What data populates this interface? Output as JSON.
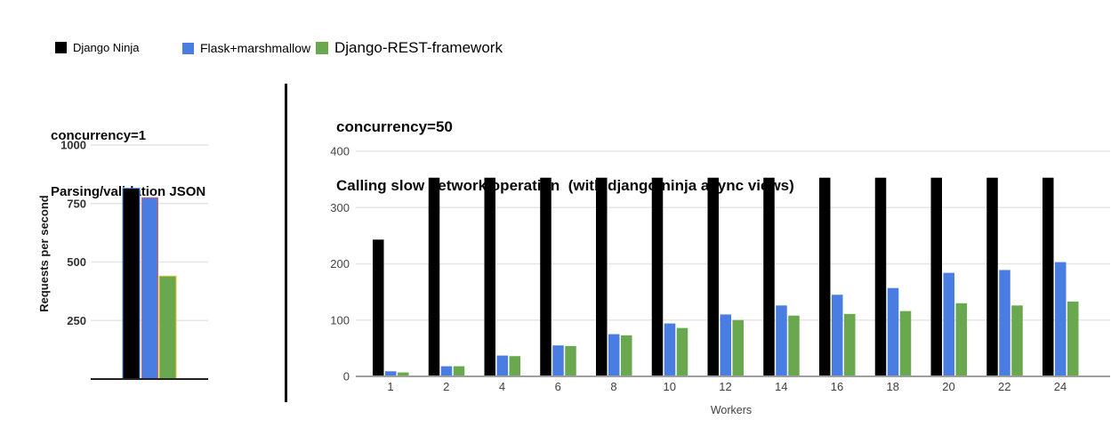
{
  "legend": {
    "items": [
      {
        "label": "Django Ninja",
        "color": "#000000"
      },
      {
        "label": "Flask+marshmallow",
        "color": "#4a7de2"
      },
      {
        "label": "Django-REST-framework",
        "color": "#6aa84f"
      }
    ]
  },
  "chart_data": [
    {
      "type": "bar",
      "title_lines": [
        "concurrency=1",
        "Parsing/validation JSON"
      ],
      "ylabel": "Requests per second",
      "xlabel": "",
      "categories": [
        ""
      ],
      "series": [
        {
          "name": "Django Ninja",
          "color": "#000000",
          "stroke": "#4285f4",
          "values": [
            815
          ]
        },
        {
          "name": "Flask+marshmallow",
          "color": "#4a7de2",
          "stroke": "#e06666",
          "values": [
            775
          ]
        },
        {
          "name": "Django-REST-framework",
          "color": "#6aa84f",
          "stroke": "#f1c232",
          "values": [
            440
          ]
        }
      ],
      "ylim": [
        0,
        1000
      ],
      "yticks": [
        250,
        500,
        750,
        1000
      ],
      "grid": true,
      "legend_position": "top"
    },
    {
      "type": "bar",
      "title_lines": [
        "concurrency=50",
        "Calling slow network operation  (with django ninja async views)"
      ],
      "ylabel": "",
      "xlabel": "Workers",
      "categories": [
        "1",
        "2",
        "4",
        "6",
        "8",
        "10",
        "12",
        "14",
        "16",
        "18",
        "20",
        "22",
        "24"
      ],
      "series": [
        {
          "name": "Django Ninja",
          "color": "#000000",
          "stroke": "none",
          "values": [
            243,
            353,
            353,
            353,
            353,
            353,
            353,
            353,
            353,
            353,
            353,
            353,
            353
          ]
        },
        {
          "name": "Flask+marshmallow",
          "color": "#4a7de2",
          "stroke": "none",
          "values": [
            9,
            18,
            37,
            55,
            75,
            94,
            110,
            126,
            145,
            157,
            184,
            189,
            203
          ]
        },
        {
          "name": "Django-REST-framework",
          "color": "#6aa84f",
          "stroke": "none",
          "values": [
            7,
            18,
            36,
            54,
            73,
            86,
            100,
            108,
            111,
            116,
            130,
            126,
            133
          ]
        }
      ],
      "ylim": [
        0,
        400
      ],
      "yticks": [
        0,
        100,
        200,
        300,
        400
      ],
      "grid": true,
      "legend_position": "top"
    }
  ]
}
